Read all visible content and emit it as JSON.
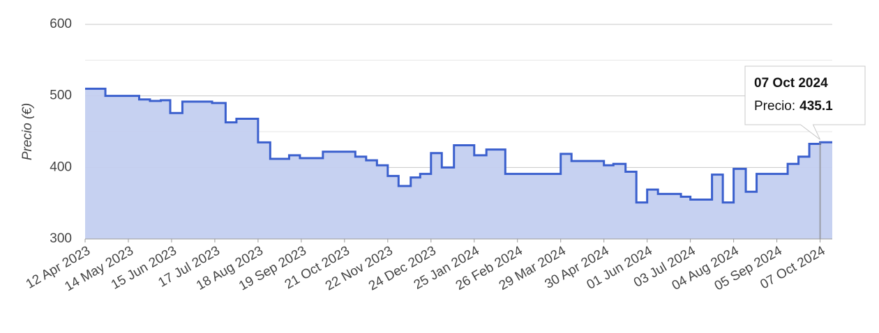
{
  "chart_data": {
    "type": "step-area",
    "y_label": "Precio (€)",
    "x": [
      "2023-04-12",
      "2023-04-27",
      "2023-05-22",
      "2023-05-30",
      "2023-06-07",
      "2023-06-14",
      "2023-06-23",
      "2023-07-15",
      "2023-07-25",
      "2023-08-02",
      "2023-08-18",
      "2023-08-27",
      "2023-09-10",
      "2023-09-18",
      "2023-10-05",
      "2023-10-29",
      "2023-11-06",
      "2023-11-14",
      "2023-11-22",
      "2023-11-30",
      "2023-12-09",
      "2023-12-16",
      "2023-12-24",
      "2024-01-01",
      "2024-01-10",
      "2024-01-25",
      "2024-02-03",
      "2024-02-17",
      "2024-03-29",
      "2024-04-06",
      "2024-04-30",
      "2024-05-07",
      "2024-05-16",
      "2024-05-24",
      "2024-06-01",
      "2024-06-09",
      "2024-06-26",
      "2024-07-03",
      "2024-07-19",
      "2024-07-27",
      "2024-08-04",
      "2024-08-13",
      "2024-08-21",
      "2024-09-13",
      "2024-09-21",
      "2024-09-29",
      "2024-10-07"
    ],
    "series": [
      {
        "name": "Precio",
        "color": "#3a5fcd",
        "fill": "#c3cff0",
        "values": [
          510,
          500,
          495,
          493,
          494,
          476,
          492,
          490,
          463,
          468,
          435,
          412,
          417,
          413,
          422,
          415,
          410,
          403,
          388,
          374,
          386,
          391,
          420,
          400,
          431,
          417,
          425,
          391,
          419,
          409,
          403,
          405,
          394,
          351,
          369,
          363,
          359,
          355,
          390,
          351,
          398,
          366,
          391,
          405,
          415,
          433,
          435.1
        ]
      }
    ],
    "xlim": [
      "2023-04-12",
      "2024-10-16"
    ],
    "xticks": [
      {
        "value": "2023-04-12",
        "label": "12 Apr 2023"
      },
      {
        "value": "2023-05-14",
        "label": "14 May 2023"
      },
      {
        "value": "2023-06-15",
        "label": "15 Jun 2023"
      },
      {
        "value": "2023-07-17",
        "label": "17 Jul 2023"
      },
      {
        "value": "2023-08-18",
        "label": "18 Aug 2023"
      },
      {
        "value": "2023-09-19",
        "label": "19 Sep 2023"
      },
      {
        "value": "2023-10-21",
        "label": "21 Oct 2023"
      },
      {
        "value": "2023-11-22",
        "label": "22 Nov 2023"
      },
      {
        "value": "2023-12-24",
        "label": "24 Dec 2023"
      },
      {
        "value": "2024-01-25",
        "label": "25 Jan 2024"
      },
      {
        "value": "2024-02-26",
        "label": "26 Feb 2024"
      },
      {
        "value": "2024-03-29",
        "label": "29 Mar 2024"
      },
      {
        "value": "2024-04-30",
        "label": "30 Apr 2024"
      },
      {
        "value": "2024-06-01",
        "label": "01 Jun 2024"
      },
      {
        "value": "2024-07-03",
        "label": "03 Jul 2024"
      },
      {
        "value": "2024-08-04",
        "label": "04 Aug 2024"
      },
      {
        "value": "2024-09-05",
        "label": "05 Sep 2024"
      },
      {
        "value": "2024-10-07",
        "label": "07 Oct 2024"
      }
    ],
    "ylim": [
      300,
      600
    ],
    "yticks": [
      300,
      400,
      500,
      600
    ],
    "minor_yticks": [
      350,
      450,
      550
    ],
    "grid": true,
    "tooltip": {
      "title": "07 Oct 2024",
      "label": "Precio:"
    }
  }
}
